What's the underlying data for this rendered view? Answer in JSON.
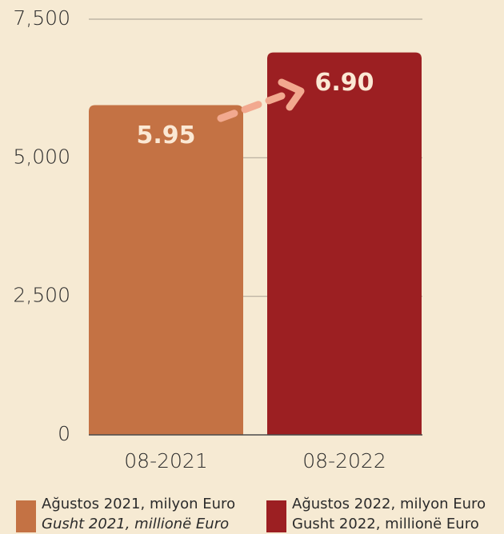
{
  "chart_data": {
    "type": "bar",
    "categories": [
      "08-2021",
      "08-2022"
    ],
    "values": [
      5950,
      6900
    ],
    "value_labels": [
      "5.95",
      "6.90"
    ],
    "colors": [
      "#c47244",
      "#9c1f22"
    ],
    "ylim": [
      0,
      7500
    ],
    "yticks": [
      0,
      {
        "value": 2500,
        "label": "2,500"
      },
      {
        "value": 5000,
        "label": "5,000"
      },
      {
        "value": 7500,
        "label": "7,500"
      }
    ],
    "grid": true,
    "legend": [
      {
        "lines": [
          "Ağustos 2021, milyon Euro",
          "Gusht 2021, millionë Euro"
        ]
      },
      {
        "lines": [
          "Ağustos 2022, milyon Euro",
          "Gusht 2022, millionë Euro"
        ]
      }
    ]
  }
}
